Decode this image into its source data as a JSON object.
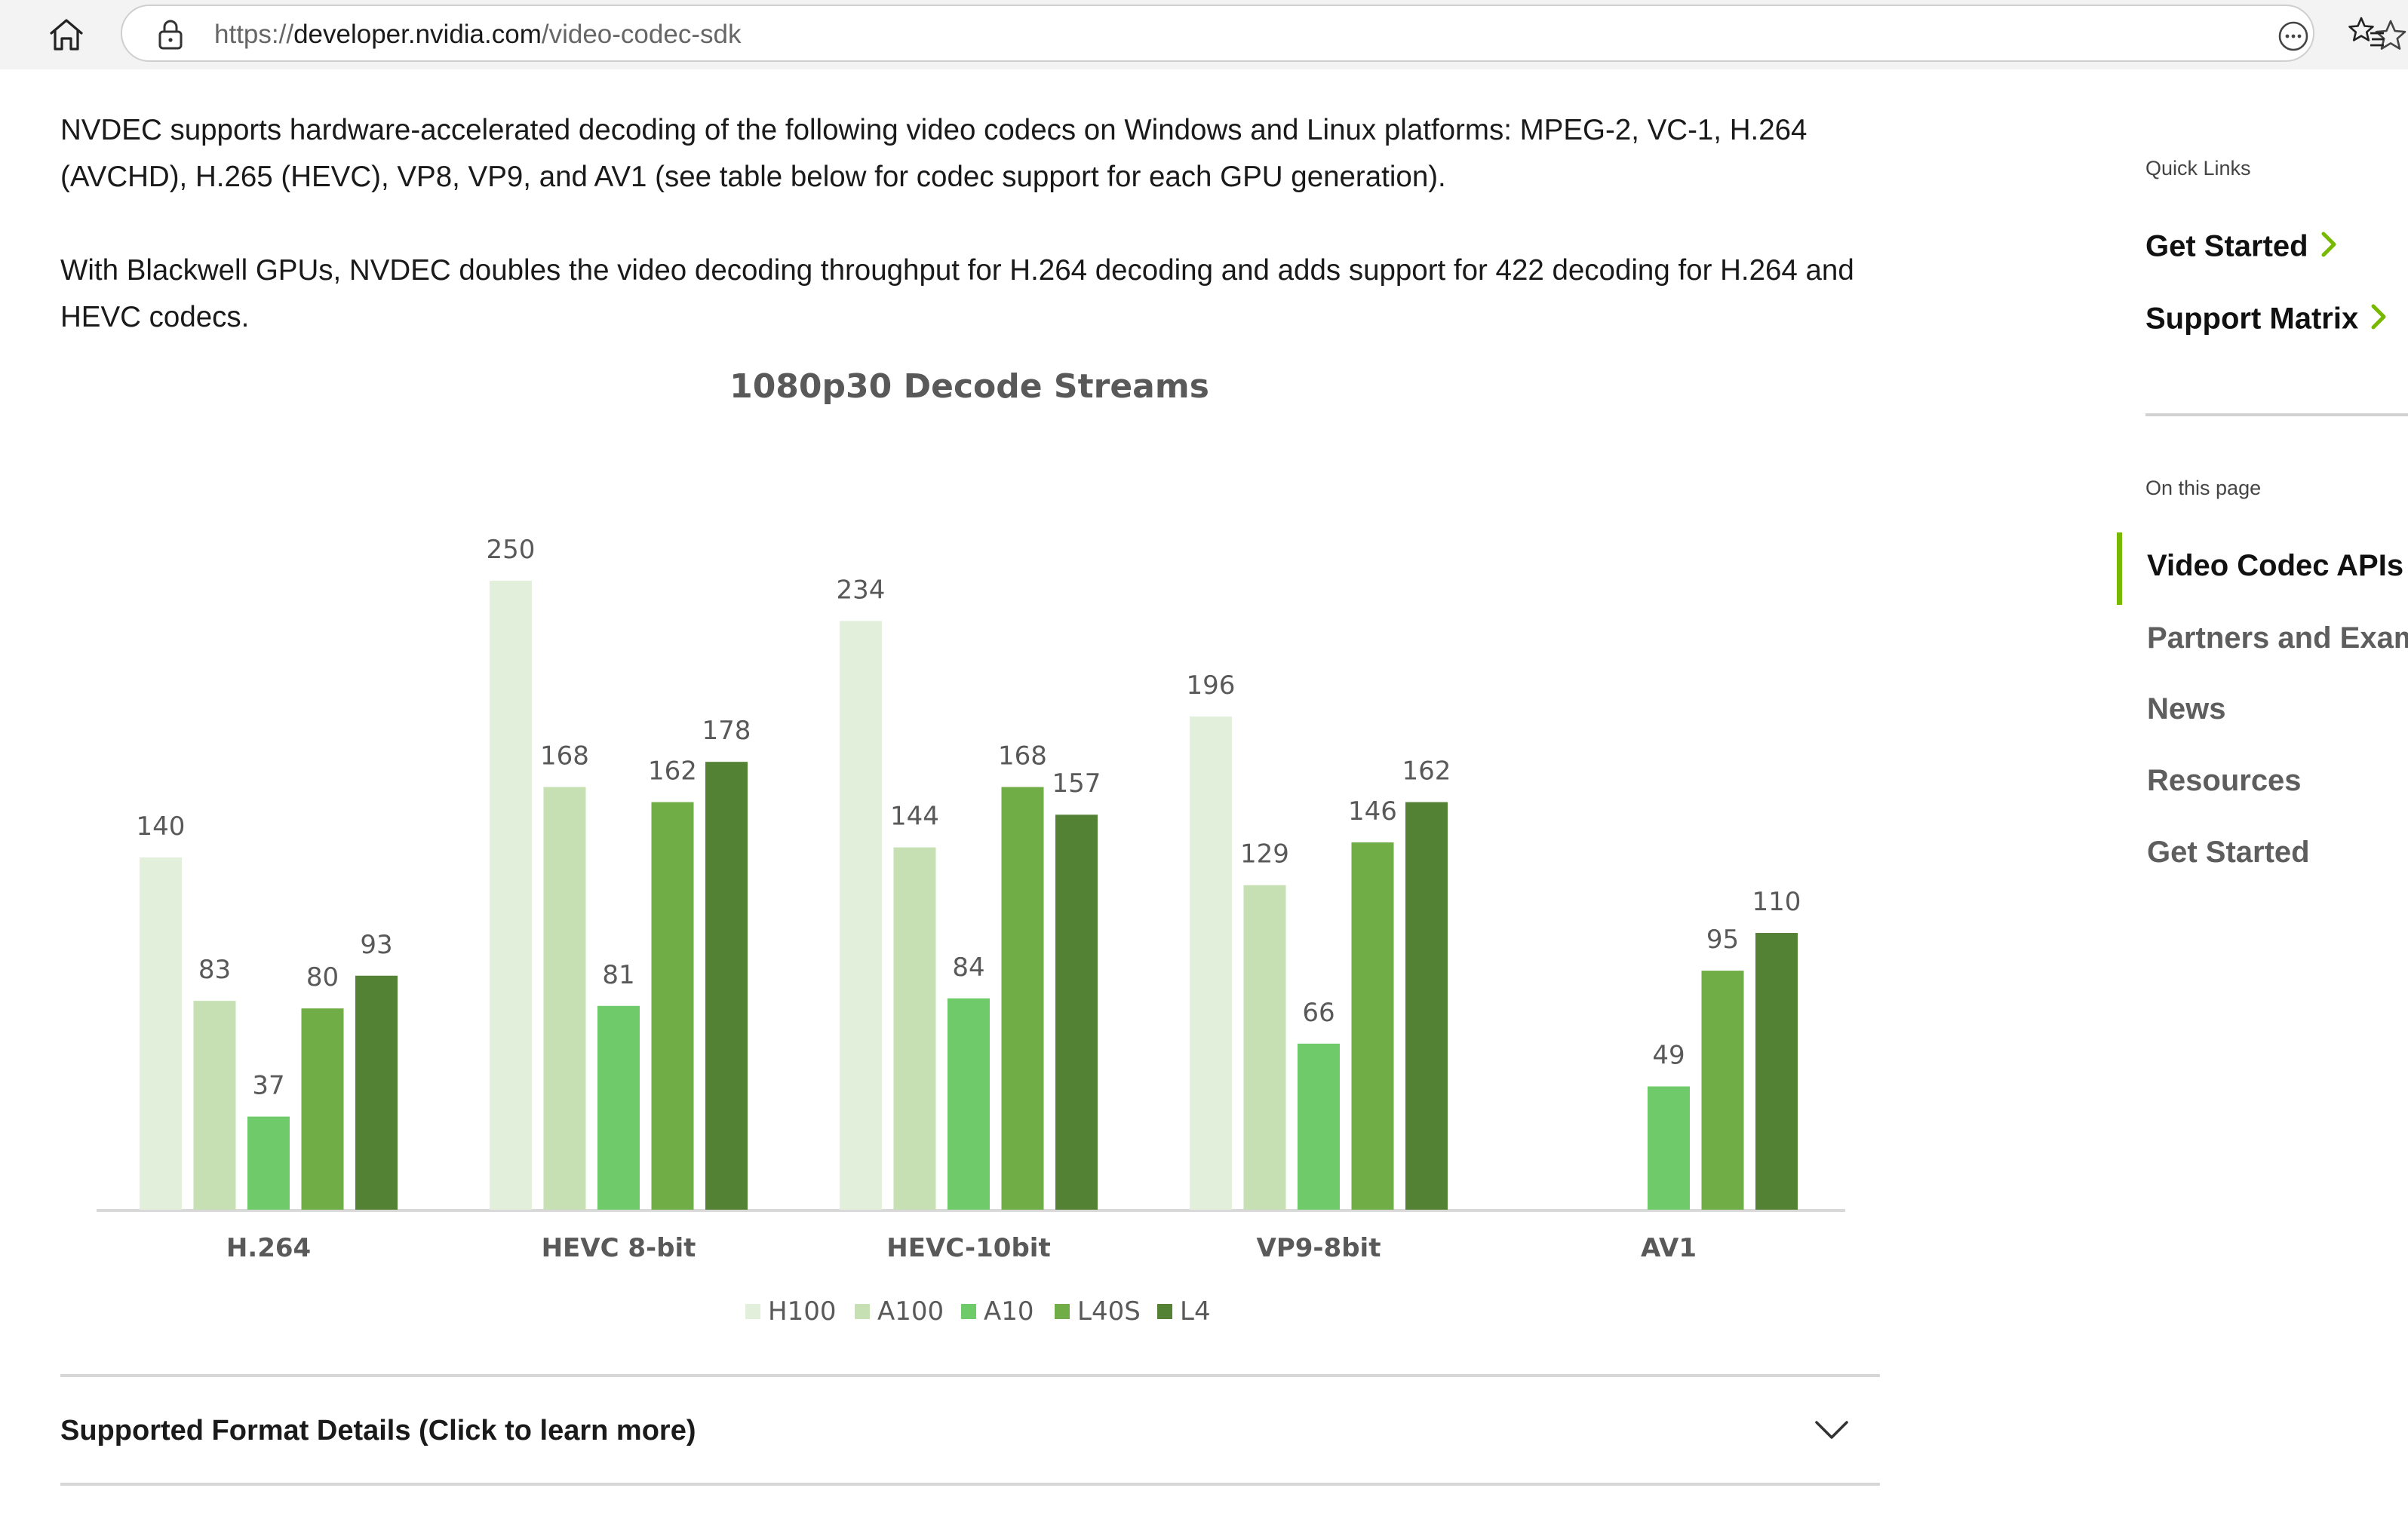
{
  "browser": {
    "url_scheme": "https://",
    "url_domain": "developer.nvidia.com",
    "url_path": "/video-codec-sdk"
  },
  "content": {
    "para1": "NVDEC supports hardware-accelerated decoding of the following video codecs on Windows and Linux platforms: MPEG-2, VC-1, H.264 (AVCHD), H.265 (HEVC), VP8, VP9, and AV1 (see table below for codec support for each GPU generation).",
    "para2": "With Blackwell GPUs, NVDEC doubles the video decoding throughput for H.264 decoding and adds support for 422 decoding for H.264 and HEVC codecs."
  },
  "chart_data": {
    "type": "bar",
    "title": "1080p30 Decode Streams",
    "categories": [
      "H.264",
      "HEVC 8-bit",
      "HEVC-10bit",
      "VP9-8bit",
      "AV1"
    ],
    "series": [
      {
        "name": "H100",
        "color": "#e2efda",
        "values": [
          140,
          250,
          234,
          196,
          null
        ]
      },
      {
        "name": "A100",
        "color": "#c6e0b4",
        "values": [
          83,
          168,
          144,
          129,
          null
        ]
      },
      {
        "name": "A10",
        "color": "#6fcb69",
        "values": [
          37,
          81,
          84,
          66,
          49
        ]
      },
      {
        "name": "L40S",
        "color": "#70ad47",
        "values": [
          80,
          162,
          168,
          146,
          95
        ]
      },
      {
        "name": "L4",
        "color": "#548235",
        "values": [
          93,
          178,
          157,
          162,
          110
        ]
      }
    ],
    "ylim": [
      0,
      250
    ],
    "legend_position": "bottom",
    "grid": false
  },
  "accordion": {
    "label": "Supported Format Details (Click to learn more)"
  },
  "sidebar": {
    "quick_links_caption": "Quick Links",
    "quick_links": [
      "Get Started",
      "Support Matrix"
    ],
    "on_this_page_caption": "On this page",
    "toc": [
      "Video Codec APIs",
      "Partners and Exam",
      "News",
      "Resources",
      "Get Started"
    ],
    "accent_color": "#76b900"
  }
}
